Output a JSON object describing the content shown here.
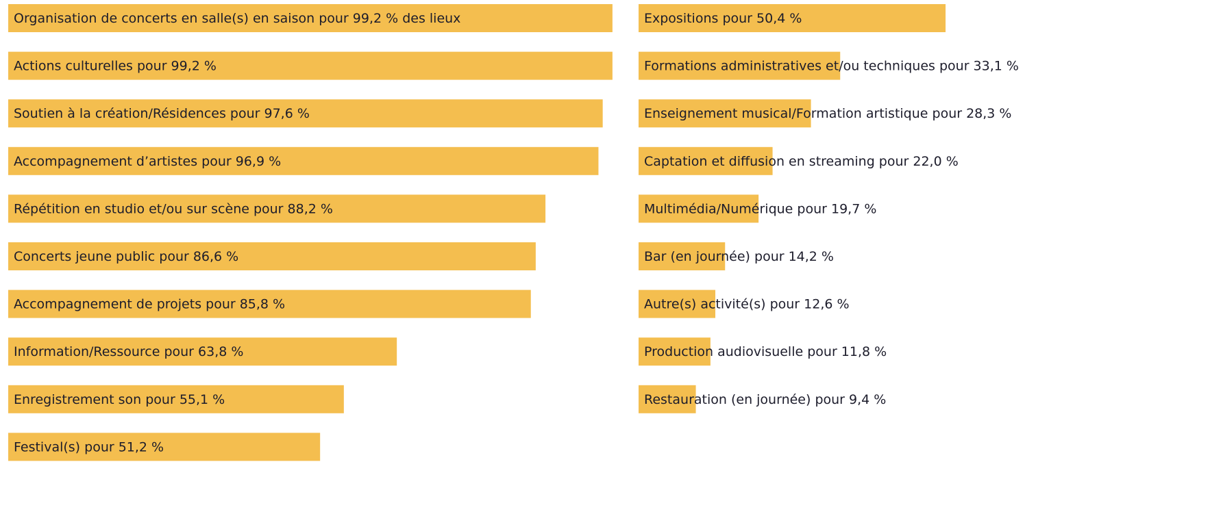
{
  "chart_data": [
    {
      "type": "bar",
      "color": "#f4be4f",
      "xlim": [
        0,
        100
      ],
      "categories": [
        "Organisation de concerts en salle(s) en saison pour 99,2 % des lieux",
        "Actions culturelles pour 99,2 %",
        "Soutien à la création/Résidences pour 97,6 %",
        "Accompagnement d’artistes pour 96,9 %",
        "Répétition en studio et/ou sur scène pour 88,2 %",
        "Concerts jeune public pour 86,6 %",
        "Accompagnement de projets pour 85,8 %",
        "Information/Ressource pour 63,8 %",
        "Enregistrement son pour 55,1 %",
        "Festival(s) pour 51,2 %"
      ],
      "values": [
        99.2,
        99.2,
        97.6,
        96.9,
        88.2,
        86.6,
        85.8,
        63.8,
        55.1,
        51.2
      ]
    },
    {
      "type": "bar",
      "color": "#f4be4f",
      "xlim": [
        0,
        100
      ],
      "categories": [
        "Expositions pour 50,4 %",
        "Formations administratives et/ou techniques pour 33,1 %",
        "Enseignement musical/Formation artistique pour 28,3 %",
        "Captation et diffusion en streaming pour 22,0 %",
        "Multimédia/Numérique pour 19,7 %",
        "Bar (en journée) pour 14,2 %",
        "Autre(s) activité(s) pour 12,6 %",
        "Production audiovisuelle pour 11,8 %",
        "Restauration (en journée) pour 9,4 %"
      ],
      "values": [
        50.4,
        33.1,
        28.3,
        22.0,
        19.7,
        14.2,
        12.6,
        11.8,
        9.4
      ]
    }
  ]
}
